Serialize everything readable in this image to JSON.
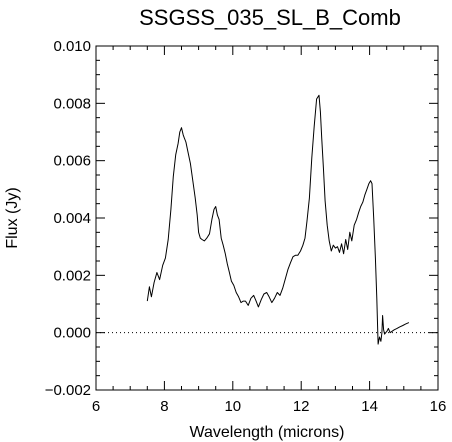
{
  "chart_data": {
    "type": "line",
    "title": "SSGSS_035_SL_B_Comb",
    "xlabel": "Wavelength (microns)",
    "ylabel": "Flux (Jy)",
    "xlim": [
      6,
      16
    ],
    "ylim": [
      -0.002,
      0.01
    ],
    "xticks": [
      6,
      8,
      10,
      12,
      14,
      16
    ],
    "yticks": [
      -0.002,
      0.0,
      0.002,
      0.004,
      0.006,
      0.008,
      0.01
    ],
    "xtick_labels": [
      "6",
      "8",
      "10",
      "12",
      "14",
      "16"
    ],
    "ytick_labels": [
      "−0.002",
      "0.000",
      "0.002",
      "0.004",
      "0.006",
      "0.008",
      "0.010"
    ],
    "grid": false,
    "reference_line": {
      "y": 0,
      "style": "dotted"
    },
    "series": [
      {
        "color": "#000000",
        "x": [
          7.5,
          7.56,
          7.62,
          7.7,
          7.78,
          7.86,
          7.95,
          8.03,
          8.11,
          8.19,
          8.26,
          8.33,
          8.4,
          8.45,
          8.5,
          8.55,
          8.58,
          8.63,
          8.69,
          8.76,
          8.83,
          8.9,
          8.96,
          9.0,
          9.05,
          9.1,
          9.17,
          9.24,
          9.32,
          9.39,
          9.45,
          9.5,
          9.55,
          9.6,
          9.66,
          9.72,
          9.78,
          9.84,
          9.9,
          9.96,
          10.03,
          10.1,
          10.17,
          10.24,
          10.3,
          10.37,
          10.45,
          10.53,
          10.61,
          10.68,
          10.75,
          10.83,
          10.91,
          10.99,
          11.06,
          11.14,
          11.22,
          11.3,
          11.38,
          11.46,
          11.54,
          11.61,
          11.69,
          11.76,
          11.83,
          11.9,
          11.98,
          12.05,
          12.11,
          12.17,
          12.24,
          12.31,
          12.38,
          12.45,
          12.52,
          12.56,
          12.6,
          12.65,
          12.7,
          12.76,
          12.82,
          12.88,
          12.94,
          13.0,
          13.06,
          13.12,
          13.18,
          13.24,
          13.3,
          13.36,
          13.42,
          13.48,
          13.55,
          13.62,
          13.68,
          13.74,
          13.8,
          13.86,
          13.92,
          13.98,
          14.03,
          14.07,
          14.12,
          14.17,
          14.21,
          14.25,
          14.29,
          14.33,
          14.36,
          14.38,
          14.41,
          14.44,
          14.47,
          14.51,
          14.55,
          14.6,
          14.66,
          14.72,
          14.8,
          14.88,
          14.97,
          15.05,
          15.15
        ],
        "y": [
          0.0011,
          0.0016,
          0.00125,
          0.00175,
          0.0021,
          0.00185,
          0.00235,
          0.0026,
          0.00325,
          0.0043,
          0.00545,
          0.0062,
          0.0066,
          0.007,
          0.00715,
          0.0069,
          0.0068,
          0.00665,
          0.0063,
          0.0059,
          0.0053,
          0.0047,
          0.0041,
          0.0035,
          0.0033,
          0.00325,
          0.0032,
          0.0033,
          0.00345,
          0.00395,
          0.0043,
          0.0044,
          0.0041,
          0.00395,
          0.0033,
          0.00305,
          0.00275,
          0.0024,
          0.0021,
          0.0018,
          0.00165,
          0.0014,
          0.00125,
          0.00105,
          0.0011,
          0.0011,
          0.00095,
          0.0012,
          0.0013,
          0.0011,
          0.0009,
          0.00115,
          0.00135,
          0.0014,
          0.00125,
          0.00105,
          0.0012,
          0.0014,
          0.0013,
          0.00155,
          0.0019,
          0.0022,
          0.00245,
          0.00265,
          0.0027,
          0.0027,
          0.00285,
          0.00305,
          0.0033,
          0.0039,
          0.0047,
          0.0061,
          0.0072,
          0.00815,
          0.00828,
          0.0077,
          0.0068,
          0.00575,
          0.0046,
          0.00375,
          0.0032,
          0.00285,
          0.00305,
          0.00295,
          0.003,
          0.0028,
          0.0031,
          0.00275,
          0.00325,
          0.0029,
          0.0035,
          0.0032,
          0.00375,
          0.00395,
          0.0042,
          0.0044,
          0.00455,
          0.0048,
          0.005,
          0.0052,
          0.0053,
          0.0052,
          0.004,
          0.0026,
          0.0012,
          -0.0004,
          -0.00015,
          -0.0003,
          0.0,
          0.0006,
          0.0001,
          -5e-05,
          0.0,
          5e-05,
          0.00015,
          0.0,
          5e-05,
          0.0001,
          0.00015,
          0.0002,
          0.00025,
          0.0003,
          0.00035
        ]
      }
    ]
  }
}
